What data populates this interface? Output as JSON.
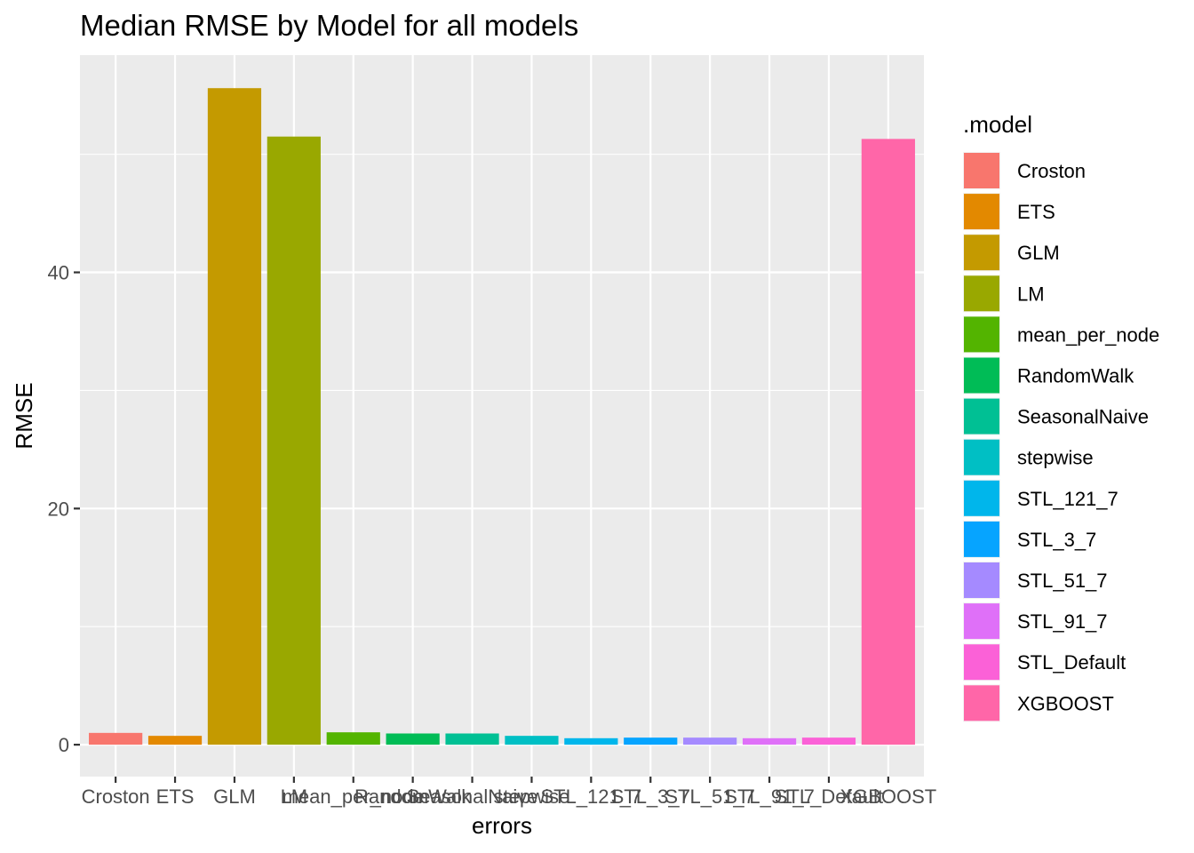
{
  "chart_data": {
    "type": "bar",
    "title": "Median RMSE by Model for all models",
    "xlabel": "errors",
    "ylabel": "RMSE",
    "categories": [
      "Croston",
      "ETS",
      "GLM",
      "LM",
      "mean_per_node",
      "RandomWalk",
      "SeasonalNaive",
      "stepwise",
      "STL_121_7",
      "STL_3_7",
      "STL_51_7",
      "STL_91_7",
      "STL_Default",
      "XGBOOST"
    ],
    "values": [
      1.0,
      0.75,
      55.6,
      51.5,
      1.05,
      0.95,
      0.95,
      0.75,
      0.55,
      0.6,
      0.6,
      0.55,
      0.6,
      51.3
    ],
    "colors": [
      "#F8766D",
      "#E38900",
      "#C49A00",
      "#99A800",
      "#53B400",
      "#00BC56",
      "#00C094",
      "#00BFC4",
      "#00B6EB",
      "#06A4FF",
      "#A58AFF",
      "#DF70F8",
      "#FB61D7",
      "#FF66A8"
    ],
    "ylim": [
      -2.7,
      58.4
    ],
    "yticks": [
      0,
      20,
      40
    ],
    "grid": true,
    "legend": {
      "title": ".model",
      "position": "right"
    }
  }
}
